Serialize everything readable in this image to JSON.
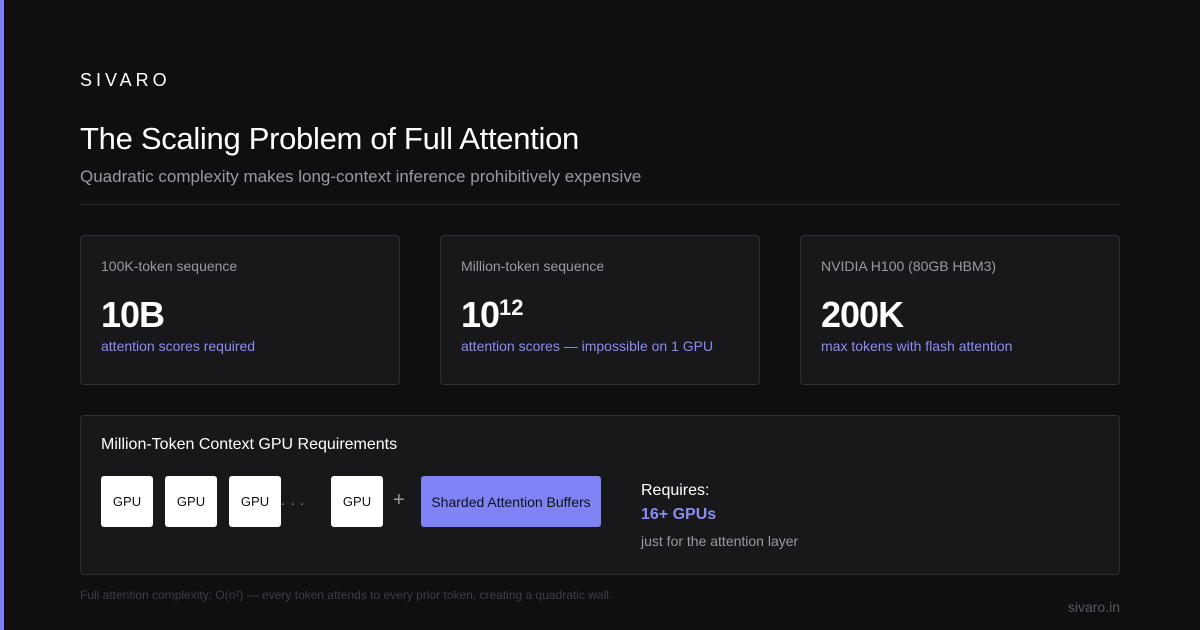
{
  "brand": "SIVARO",
  "title": "The Scaling Problem of Full Attention",
  "subtitle": "Quadratic complexity makes long-context inference prohibitively expensive",
  "stats": [
    {
      "label": "100K-token sequence",
      "value": "10B",
      "value_sup": "",
      "note": "attention scores required"
    },
    {
      "label": "Million-token sequence",
      "value": "10",
      "value_sup": "12",
      "note": "attention scores — impossible on 1 GPU"
    },
    {
      "label": "NVIDIA H100 (80GB HBM3)",
      "value": "200K",
      "value_sup": "",
      "note": "max tokens with flash attention"
    }
  ],
  "gpu_panel": {
    "title": "Million-Token Context GPU Requirements",
    "gpu_labels": [
      "GPU",
      "GPU",
      "GPU",
      "GPU"
    ],
    "ellipsis": "...",
    "plus": "+",
    "buffer_label": "Sharded Attention Buffers",
    "requires_label": "Requires:",
    "requires_value": "16+ GPUs",
    "requires_note": "just for the attention layer"
  },
  "footnote": "Full attention complexity: O(n²) — every token attends to every prior token, creating a quadratic wall.",
  "site": "sivaro.in",
  "colors": {
    "accent": "#7f83f5",
    "background": "#0f0f10",
    "card": "#18181b"
  }
}
